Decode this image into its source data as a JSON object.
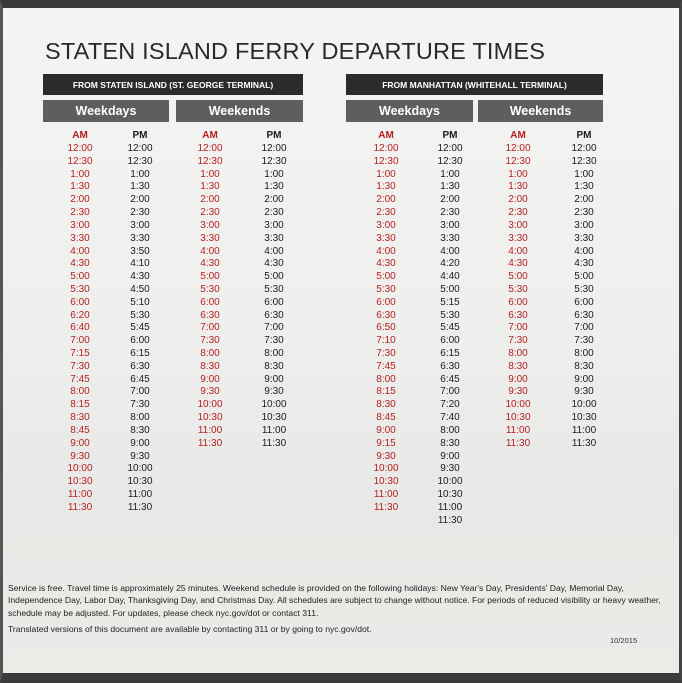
{
  "title": "STATEN ISLAND FERRY DEPARTURE TIMES",
  "from_staten": {
    "label": "FROM STATEN ISLAND (ST. GEORGE TERMINAL)",
    "weekdays": {
      "label": "Weekdays",
      "am_label": "AM",
      "pm_label": "PM",
      "am": [
        "12:00",
        "12:30",
        "1:00",
        "1:30",
        "2:00",
        "2:30",
        "3:00",
        "3:30",
        "4:00",
        "4:30",
        "5:00",
        "5:30",
        "6:00",
        "6:20",
        "6:40",
        "7:00",
        "7:15",
        "7:30",
        "7:45",
        "8:00",
        "8:15",
        "8:30",
        "8:45",
        "9:00",
        "9:30",
        "10:00",
        "10:30",
        "11:00",
        "11:30"
      ],
      "pm": [
        "12:00",
        "12:30",
        "1:00",
        "1:30",
        "2:00",
        "2:30",
        "3:00",
        "3:30",
        "3:50",
        "4:10",
        "4:30",
        "4:50",
        "5:10",
        "5:30",
        "5:45",
        "6:00",
        "6:15",
        "6:30",
        "6:45",
        "7:00",
        "7:30",
        "8:00",
        "8:30",
        "9:00",
        "9:30",
        "10:00",
        "10:30",
        "11:00",
        "11:30"
      ]
    },
    "weekends": {
      "label": "Weekends",
      "am_label": "AM",
      "pm_label": "PM",
      "am": [
        "12:00",
        "12:30",
        "1:00",
        "1:30",
        "2:00",
        "2:30",
        "3:00",
        "3:30",
        "4:00",
        "4:30",
        "5:00",
        "5:30",
        "6:00",
        "6:30",
        "7:00",
        "7:30",
        "8:00",
        "8:30",
        "9:00",
        "9:30",
        "10:00",
        "10:30",
        "11:00",
        "11:30"
      ],
      "pm": [
        "12:00",
        "12:30",
        "1:00",
        "1:30",
        "2:00",
        "2:30",
        "3:00",
        "3:30",
        "4:00",
        "4:30",
        "5:00",
        "5:30",
        "6:00",
        "6:30",
        "7:00",
        "7:30",
        "8:00",
        "8:30",
        "9:00",
        "9:30",
        "10:00",
        "10:30",
        "11:00",
        "11:30"
      ]
    }
  },
  "from_manhattan": {
    "label": "FROM MANHATTAN (WHITEHALL TERMINAL)",
    "weekdays": {
      "label": "Weekdays",
      "am_label": "AM",
      "pm_label": "PM",
      "am": [
        "12:00",
        "12:30",
        "1:00",
        "1:30",
        "2:00",
        "2:30",
        "3:00",
        "3:30",
        "4:00",
        "4:30",
        "5:00",
        "5:30",
        "6:00",
        "6:30",
        "6:50",
        "7:10",
        "7:30",
        "7:45",
        "8:00",
        "8:15",
        "8:30",
        "8:45",
        "9:00",
        "9:15",
        "9:30",
        "10:00",
        "10:30",
        "11:00",
        "11:30"
      ],
      "pm": [
        "12:00",
        "12:30",
        "1:00",
        "1:30",
        "2:00",
        "2:30",
        "3:00",
        "3:30",
        "4:00",
        "4:20",
        "4:40",
        "5:00",
        "5:15",
        "5:30",
        "5:45",
        "6:00",
        "6:15",
        "6:30",
        "6:45",
        "7:00",
        "7:20",
        "7:40",
        "8:00",
        "8:30",
        "9:00",
        "9:30",
        "10:00",
        "10:30",
        "11:00",
        "11:30"
      ]
    },
    "weekends": {
      "label": "Weekends",
      "am_label": "AM",
      "pm_label": "PM",
      "am": [
        "12:00",
        "12:30",
        "1:00",
        "1:30",
        "2:00",
        "2:30",
        "3:00",
        "3:30",
        "4:00",
        "4:30",
        "5:00",
        "5:30",
        "6:00",
        "6:30",
        "7:00",
        "7:30",
        "8:00",
        "8:30",
        "9:00",
        "9:30",
        "10:00",
        "10:30",
        "11:00",
        "11:30"
      ],
      "pm": [
        "12:00",
        "12:30",
        "1:00",
        "1:30",
        "2:00",
        "2:30",
        "3:00",
        "3:30",
        "4:00",
        "4:30",
        "5:00",
        "5:30",
        "6:00",
        "6:30",
        "7:00",
        "7:30",
        "8:00",
        "8:30",
        "9:00",
        "9:30",
        "10:00",
        "10:30",
        "11:00",
        "11:30"
      ]
    }
  },
  "notes": {
    "main": "Service is free. Travel time is approximately 25 minutes. Weekend schedule is provided on the following holidays: New Year's Day, Presidents' Day, Memorial Day, Independence Day, Labor Day, Thanksgiving Day, and Christmas Day. All schedules are subject to change without notice. For periods of reduced visibility or heavy weather, schedule may be adjusted. For updates, please check nyc.gov/dot or contact 311.",
    "translated": "Translated versions of this document are available by contacting 311 or by going to nyc.gov/dot."
  },
  "date_code": "10/2015",
  "colors": {
    "am_text": "#b52020",
    "pm_text": "#1c1c1c",
    "terminal_bar": "#2b2b2b",
    "day_bar": "#5e5e5e"
  }
}
